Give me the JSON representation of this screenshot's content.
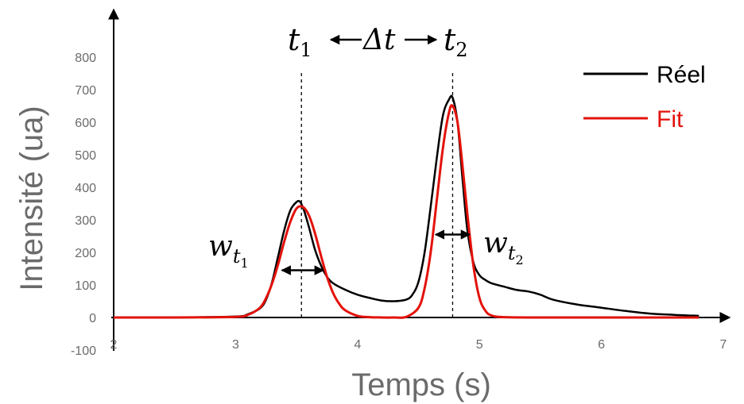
{
  "chart_data": {
    "type": "line",
    "xlabel": "Temps (s)",
    "ylabel": "Intensité (ua)",
    "xlim": [
      2,
      7
    ],
    "ylim": [
      -100,
      850
    ],
    "x_ticks": [
      "2",
      "3",
      "4",
      "5",
      "6",
      "7"
    ],
    "y_ticks": [
      "-100",
      "0",
      "100",
      "200",
      "300",
      "400",
      "500",
      "600",
      "700",
      "800"
    ],
    "series": [
      {
        "name": "Réel",
        "color": "#000000",
        "x": [
          2.0,
          2.5,
          3.0,
          3.1,
          3.2,
          3.25,
          3.3,
          3.35,
          3.4,
          3.45,
          3.5,
          3.53,
          3.56,
          3.6,
          3.65,
          3.7,
          3.75,
          3.8,
          3.9,
          4.0,
          4.1,
          4.2,
          4.3,
          4.4,
          4.45,
          4.5,
          4.55,
          4.6,
          4.65,
          4.7,
          4.75,
          4.78,
          4.82,
          4.86,
          4.9,
          4.95,
          5.0,
          5.05,
          5.1,
          5.2,
          5.3,
          5.4,
          5.5,
          5.6,
          5.8,
          6.0,
          6.2,
          6.4,
          6.6,
          6.8
        ],
        "y": [
          0,
          0,
          3,
          10,
          28,
          55,
          110,
          190,
          270,
          330,
          355,
          355,
          330,
          280,
          210,
          160,
          125,
          105,
          85,
          70,
          60,
          52,
          50,
          55,
          70,
          110,
          200,
          340,
          490,
          620,
          670,
          675,
          600,
          430,
          270,
          170,
          130,
          115,
          105,
          95,
          85,
          80,
          70,
          55,
          40,
          30,
          20,
          12,
          8,
          5
        ]
      },
      {
        "name": "Fit",
        "color": "#e3120b",
        "x": [
          2.0,
          2.5,
          3.0,
          3.1,
          3.2,
          3.25,
          3.3,
          3.35,
          3.4,
          3.45,
          3.5,
          3.55,
          3.6,
          3.65,
          3.7,
          3.75,
          3.8,
          3.85,
          3.9,
          4.0,
          4.1,
          4.2,
          4.3,
          4.4,
          4.5,
          4.55,
          4.6,
          4.65,
          4.7,
          4.75,
          4.78,
          4.82,
          4.86,
          4.9,
          4.95,
          5.0,
          5.05,
          5.1,
          5.2,
          5.5,
          6.0,
          6.8
        ],
        "y": [
          0,
          0,
          2,
          8,
          30,
          60,
          105,
          165,
          235,
          295,
          335,
          340,
          315,
          260,
          190,
          125,
          75,
          42,
          22,
          5,
          1,
          0,
          0,
          2,
          30,
          90,
          200,
          360,
          520,
          630,
          650,
          600,
          470,
          320,
          160,
          60,
          20,
          6,
          1,
          0,
          0,
          0
        ]
      }
    ],
    "legend": {
      "position": "top-right",
      "entries": [
        "Réel",
        "Fit"
      ]
    },
    "grid": false,
    "annotations": {
      "t1": {
        "base": "t",
        "sub": "1",
        "x": 3.54
      },
      "t2": {
        "base": "t",
        "sub": "2",
        "x": 4.78
      },
      "delta": "Δt",
      "w1": {
        "base": "w",
        "sub": "t",
        "subsub": "1",
        "y": 145,
        "x_from": 3.38,
        "x_to": 3.72
      },
      "w2": {
        "base": "w",
        "sub": "t",
        "subsub": "2",
        "y": 255,
        "x_from": 4.64,
        "x_to": 4.92
      }
    }
  }
}
